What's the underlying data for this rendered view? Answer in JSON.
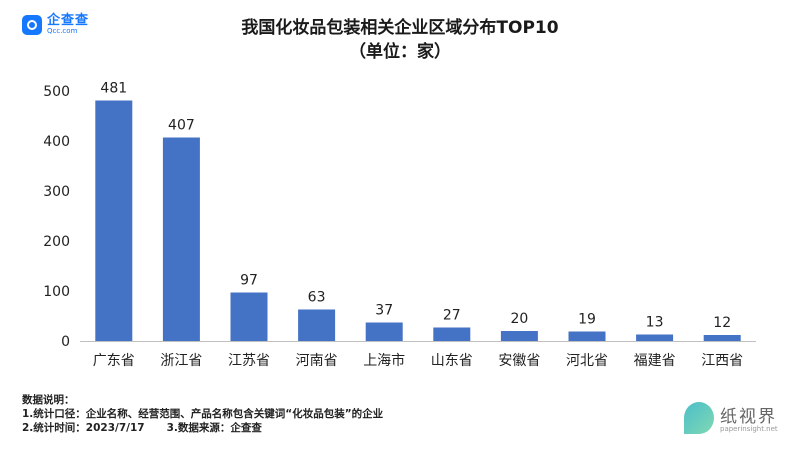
{
  "brand": {
    "name": "企查查",
    "sub": "Qcc.com"
  },
  "watermark": {
    "name": "纸视界",
    "url": "paperinsight.net"
  },
  "notes": {
    "heading": "数据说明：",
    "line1": "1.统计口径：企业名称、经营范围、产品名称包含关键词“化妆品包装”的企业",
    "line2a": "2.统计时间：2023/7/17",
    "line2b": "3.数据来源：企查查"
  },
  "chart_data": {
    "type": "bar",
    "title": "我国化妆品包装相关企业区域分布TOP10",
    "subtitle": "（单位：家）",
    "categories": [
      "广东省",
      "浙江省",
      "江苏省",
      "河南省",
      "上海市",
      "山东省",
      "安徽省",
      "河北省",
      "福建省",
      "江西省"
    ],
    "values": [
      481,
      407,
      97,
      63,
      37,
      27,
      20,
      19,
      13,
      12
    ],
    "ylim": [
      0,
      500
    ],
    "yticks": [
      0,
      100,
      200,
      300,
      400,
      500
    ],
    "grid": false,
    "legend": "none",
    "bar_color": "#4472c4"
  }
}
